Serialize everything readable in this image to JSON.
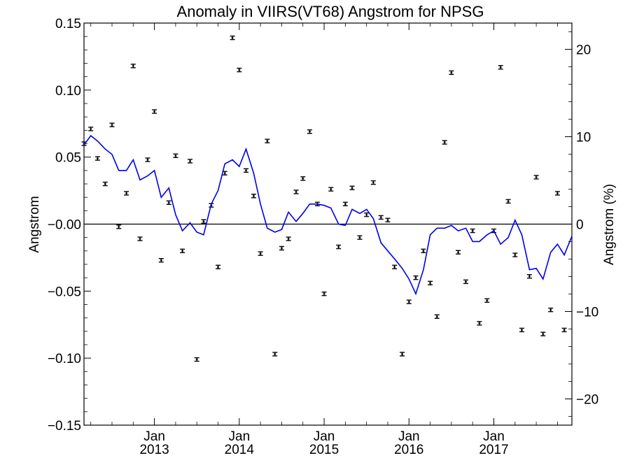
{
  "chart_data": {
    "type": "scatter",
    "title": "Anomaly in VIIRS(VT68) Angstrom for NPSG",
    "ylabel": "Angstrom",
    "ylabel_right": "Angstrom (%)",
    "ylim": [
      -0.15,
      0.15
    ],
    "ylim_right": [
      -23,
      23
    ],
    "xlim": [
      2012.17,
      2017.92
    ],
    "y_ticks": [
      -0.15,
      -0.1,
      -0.05,
      0.0,
      0.05,
      0.1,
      0.15
    ],
    "y_tick_labels": [
      "−0.15",
      "−0.10",
      "−0.05",
      "−0.00",
      "0.05",
      "0.10",
      "0.15"
    ],
    "y_right_ticks": [
      -20,
      -10,
      0,
      10,
      20
    ],
    "y_right_tick_labels": [
      "−20",
      "−10",
      "0",
      "10",
      "20"
    ],
    "x_ticks": [
      {
        "value": 2013.0,
        "month": "Jan",
        "year": "2013"
      },
      {
        "value": 2014.0,
        "month": "Jan",
        "year": "2014"
      },
      {
        "value": 2015.0,
        "month": "Jan",
        "year": "2015"
      },
      {
        "value": 2016.0,
        "month": "Jan",
        "year": "2016"
      },
      {
        "value": 2017.0,
        "month": "Jan",
        "year": "2017"
      }
    ],
    "zero_line": true,
    "series": [
      {
        "style": "points-with-errorbars",
        "color": "#000000",
        "x": [
          2012.17,
          2012.25,
          2012.33,
          2012.42,
          2012.5,
          2012.58,
          2012.67,
          2012.75,
          2012.83,
          2012.92,
          2013.0,
          2013.08,
          2013.17,
          2013.25,
          2013.33,
          2013.42,
          2013.5,
          2013.58,
          2013.67,
          2013.75,
          2013.83,
          2013.92,
          2014.0,
          2014.08,
          2014.17,
          2014.25,
          2014.33,
          2014.42,
          2014.5,
          2014.58,
          2014.67,
          2014.75,
          2014.83,
          2014.92,
          2015.0,
          2015.08,
          2015.17,
          2015.25,
          2015.33,
          2015.42,
          2015.5,
          2015.58,
          2015.67,
          2015.75,
          2015.83,
          2015.92,
          2016.0,
          2016.08,
          2016.17,
          2016.25,
          2016.33,
          2016.42,
          2016.5,
          2016.58,
          2016.67,
          2016.75,
          2016.83,
          2016.92,
          2017.0,
          2017.08,
          2017.17,
          2017.25,
          2017.33,
          2017.42,
          2017.5,
          2017.58,
          2017.67,
          2017.75,
          2017.83
        ],
        "y": [
          0.06,
          0.071,
          0.049,
          0.03,
          0.074,
          -0.002,
          0.023,
          0.118,
          -0.011,
          0.048,
          0.084,
          -0.027,
          0.016,
          0.051,
          -0.02,
          0.047,
          -0.101,
          0.002,
          0.014,
          -0.032,
          0.038,
          0.139,
          0.115,
          0.04,
          0.021,
          -0.022,
          0.062,
          -0.097,
          -0.018,
          -0.011,
          0.024,
          0.034,
          0.069,
          0.015,
          -0.052,
          0.026,
          -0.017,
          0.015,
          0.027,
          -0.01,
          0.007,
          0.031,
          0.005,
          0.003,
          -0.032,
          -0.097,
          -0.058,
          -0.04,
          -0.02,
          -0.044,
          -0.069,
          0.061,
          0.113,
          -0.021,
          -0.043,
          -0.005,
          -0.074,
          -0.057,
          -0.005,
          0.117,
          0.017,
          -0.023,
          -0.079,
          -0.039,
          0.035,
          -0.082,
          -0.064,
          0.023,
          -0.079
        ]
      },
      {
        "style": "line",
        "color": "#0000ee",
        "x": [
          2012.17,
          2012.25,
          2012.33,
          2012.42,
          2012.5,
          2012.58,
          2012.67,
          2012.75,
          2012.83,
          2012.92,
          2013.0,
          2013.08,
          2013.17,
          2013.25,
          2013.33,
          2013.42,
          2013.5,
          2013.58,
          2013.67,
          2013.75,
          2013.83,
          2013.92,
          2014.0,
          2014.08,
          2014.17,
          2014.25,
          2014.33,
          2014.42,
          2014.5,
          2014.58,
          2014.67,
          2014.75,
          2014.83,
          2014.92,
          2015.0,
          2015.08,
          2015.17,
          2015.25,
          2015.33,
          2015.42,
          2015.5,
          2015.58,
          2015.67,
          2015.75,
          2015.83,
          2015.92,
          2016.0,
          2016.08,
          2016.17,
          2016.25,
          2016.33,
          2016.42,
          2016.5,
          2016.58,
          2016.67,
          2016.75,
          2016.83,
          2016.92,
          2017.0,
          2017.08,
          2017.17,
          2017.25,
          2017.33,
          2017.42,
          2017.5,
          2017.58,
          2017.67,
          2017.75,
          2017.83,
          2017.92
        ],
        "y": [
          0.059,
          0.066,
          0.062,
          0.056,
          0.052,
          0.04,
          0.04,
          0.048,
          0.033,
          0.036,
          0.04,
          0.02,
          0.027,
          0.007,
          -0.005,
          0.001,
          -0.006,
          -0.008,
          0.015,
          0.025,
          0.045,
          0.048,
          0.043,
          0.056,
          0.038,
          0.015,
          -0.003,
          -0.006,
          -0.004,
          0.009,
          0.002,
          0.008,
          0.015,
          0.015,
          0.014,
          0.012,
          0.0,
          -0.001,
          0.011,
          0.008,
          0.011,
          0.004,
          -0.014,
          -0.02,
          -0.026,
          -0.033,
          -0.041,
          -0.052,
          -0.034,
          -0.008,
          -0.003,
          -0.003,
          -0.001,
          -0.005,
          -0.003,
          -0.013,
          -0.013,
          -0.008,
          -0.005,
          -0.015,
          -0.01,
          0.003,
          -0.008,
          -0.034,
          -0.033,
          -0.041,
          -0.021,
          -0.015,
          -0.023,
          -0.009
        ]
      }
    ]
  }
}
